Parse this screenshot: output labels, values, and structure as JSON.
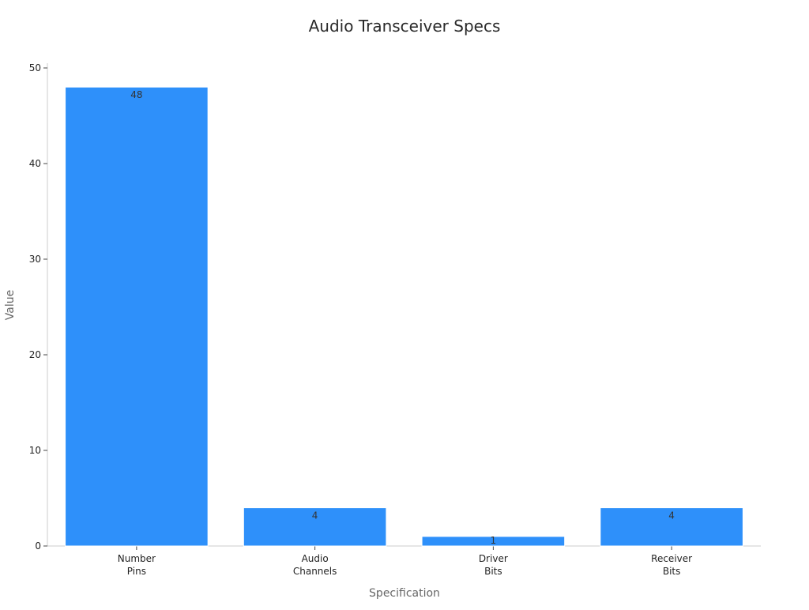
{
  "chart_data": {
    "type": "bar",
    "title": "Audio Transceiver Specs",
    "xlabel": "Specification",
    "ylabel": "Value",
    "categories": [
      [
        "Number",
        "Pins"
      ],
      [
        "Audio",
        "Channels"
      ],
      [
        "Driver",
        "Bits"
      ],
      [
        "Receiver",
        "Bits"
      ]
    ],
    "values": [
      48,
      4,
      1,
      4
    ],
    "data_labels": [
      "48",
      "4",
      "1",
      "4"
    ],
    "ylim": [
      0,
      50
    ],
    "yticks": [
      0,
      10,
      20,
      30,
      40,
      50
    ],
    "ytick_labels": [
      "0",
      "10",
      "20",
      "30",
      "40",
      "50"
    ],
    "bar_color": "#2e90fa",
    "grid": false,
    "legend": "none"
  }
}
